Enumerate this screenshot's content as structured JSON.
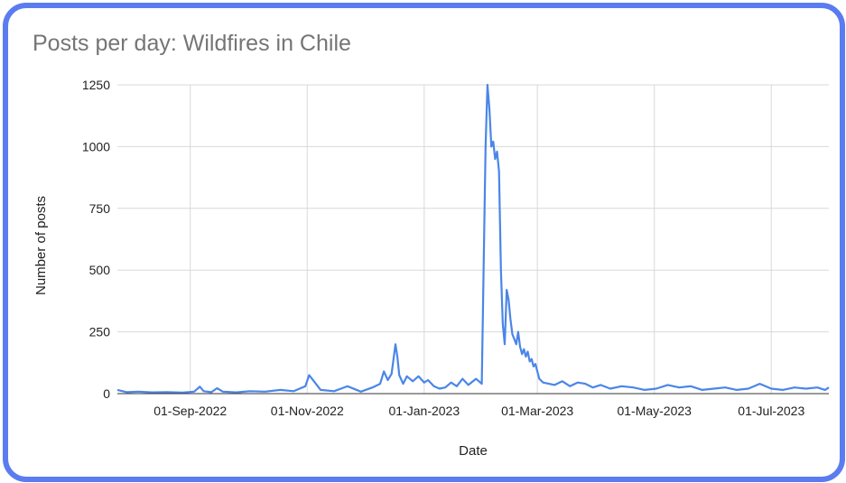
{
  "chart_data": {
    "type": "line",
    "title": "Posts per day: Wildfires in Chile",
    "xlabel": "Date",
    "ylabel": "Number of posts",
    "ylim": [
      0,
      1250
    ],
    "xlim": [
      "2022-07-25",
      "2023-07-31"
    ],
    "y_ticks": [
      0,
      250,
      500,
      750,
      1000,
      1250
    ],
    "x_ticks": [
      {
        "date": "2022-09-01",
        "label": "01-Sep-2022"
      },
      {
        "date": "2022-11-01",
        "label": "01-Nov-2022"
      },
      {
        "date": "2023-01-01",
        "label": "01-Jan-2023"
      },
      {
        "date": "2023-03-01",
        "label": "01-Mar-2023"
      },
      {
        "date": "2023-05-01",
        "label": "01-May-2023"
      },
      {
        "date": "2023-07-01",
        "label": "01-Jul-2023"
      }
    ],
    "grid": true,
    "line_color": "#4a86e8",
    "series": [
      {
        "x": [
          "2022-07-25",
          "2022-07-30",
          "2022-08-05",
          "2022-08-12",
          "2022-08-20",
          "2022-08-28",
          "2022-09-03",
          "2022-09-06",
          "2022-09-08",
          "2022-09-12",
          "2022-09-15",
          "2022-09-18",
          "2022-09-25",
          "2022-10-02",
          "2022-10-10",
          "2022-10-18",
          "2022-10-25",
          "2022-10-28",
          "2022-10-31",
          "2022-11-02",
          "2022-11-05",
          "2022-11-08",
          "2022-11-15",
          "2022-11-22",
          "2022-11-29",
          "2022-12-05",
          "2022-12-09",
          "2022-12-11",
          "2022-12-13",
          "2022-12-15",
          "2022-12-17",
          "2022-12-18",
          "2022-12-19",
          "2022-12-21",
          "2022-12-23",
          "2022-12-26",
          "2022-12-29",
          "2023-01-01",
          "2023-01-03",
          "2023-01-06",
          "2023-01-09",
          "2023-01-12",
          "2023-01-15",
          "2023-01-18",
          "2023-01-21",
          "2023-01-24",
          "2023-01-28",
          "2023-01-31",
          "2023-02-02",
          "2023-02-03",
          "2023-02-04",
          "2023-02-05",
          "2023-02-06",
          "2023-02-07",
          "2023-02-08",
          "2023-02-09",
          "2023-02-10",
          "2023-02-11",
          "2023-02-12",
          "2023-02-13",
          "2023-02-14",
          "2023-02-15",
          "2023-02-16",
          "2023-02-17",
          "2023-02-18",
          "2023-02-19",
          "2023-02-20",
          "2023-02-21",
          "2023-02-22",
          "2023-02-23",
          "2023-02-24",
          "2023-02-25",
          "2023-02-26",
          "2023-02-27",
          "2023-02-28",
          "2023-03-02",
          "2023-03-04",
          "2023-03-07",
          "2023-03-10",
          "2023-03-14",
          "2023-03-18",
          "2023-03-22",
          "2023-03-26",
          "2023-03-30",
          "2023-04-03",
          "2023-04-08",
          "2023-04-14",
          "2023-04-20",
          "2023-04-26",
          "2023-05-02",
          "2023-05-08",
          "2023-05-14",
          "2023-05-20",
          "2023-05-26",
          "2023-06-01",
          "2023-06-07",
          "2023-06-13",
          "2023-06-19",
          "2023-06-25",
          "2023-07-01",
          "2023-07-07",
          "2023-07-13",
          "2023-07-19",
          "2023-07-25",
          "2023-07-29",
          "2023-07-31"
        ],
        "y": [
          15,
          6,
          8,
          5,
          6,
          4,
          8,
          28,
          10,
          6,
          22,
          8,
          5,
          10,
          8,
          15,
          10,
          20,
          30,
          75,
          45,
          15,
          10,
          30,
          8,
          25,
          40,
          90,
          55,
          80,
          200,
          150,
          75,
          40,
          70,
          50,
          70,
          45,
          55,
          30,
          20,
          25,
          45,
          30,
          60,
          35,
          60,
          40,
          1000,
          1250,
          1150,
          1000,
          1020,
          950,
          980,
          900,
          500,
          280,
          200,
          420,
          380,
          300,
          240,
          220,
          200,
          250,
          190,
          160,
          180,
          150,
          170,
          130,
          140,
          110,
          120,
          60,
          45,
          40,
          35,
          50,
          30,
          45,
          40,
          25,
          35,
          20,
          30,
          25,
          15,
          20,
          35,
          25,
          30,
          15,
          20,
          25,
          15,
          20,
          40,
          20,
          15,
          25,
          20,
          25,
          15,
          25
        ]
      }
    ]
  }
}
